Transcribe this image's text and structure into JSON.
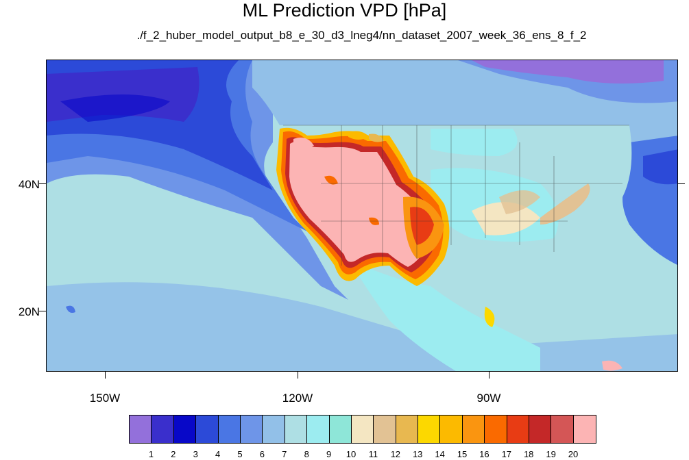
{
  "title": "ML Prediction VPD [hPa]",
  "subtitle": "./f_2_huber_model_output_b8_e_30_d3_lneg4/nn_dataset_2007_week_36_ens_8_f_2",
  "lat_labels": [
    "40N",
    "20N"
  ],
  "lon_labels": [
    "150W",
    "120W",
    "90W"
  ],
  "colorbar": {
    "colors": [
      "#9370db",
      "#3a2fcc",
      "#0808c8",
      "#2c4ad8",
      "#4a76e4",
      "#6e95e8",
      "#92c0e8",
      "#aedfe4",
      "#9cecf0",
      "#8ee6d8",
      "#f4e6c2",
      "#e2c294",
      "#e8b850",
      "#fcd800",
      "#fcba00",
      "#fa9510",
      "#fa6a00",
      "#e83c14",
      "#c42828",
      "#d45656",
      "#fcb4b4"
    ],
    "labels": [
      "1",
      "2",
      "3",
      "4",
      "5",
      "6",
      "7",
      "8",
      "9",
      "10",
      "11",
      "12",
      "13",
      "14",
      "15",
      "16",
      "17",
      "18",
      "19",
      "20"
    ]
  }
}
